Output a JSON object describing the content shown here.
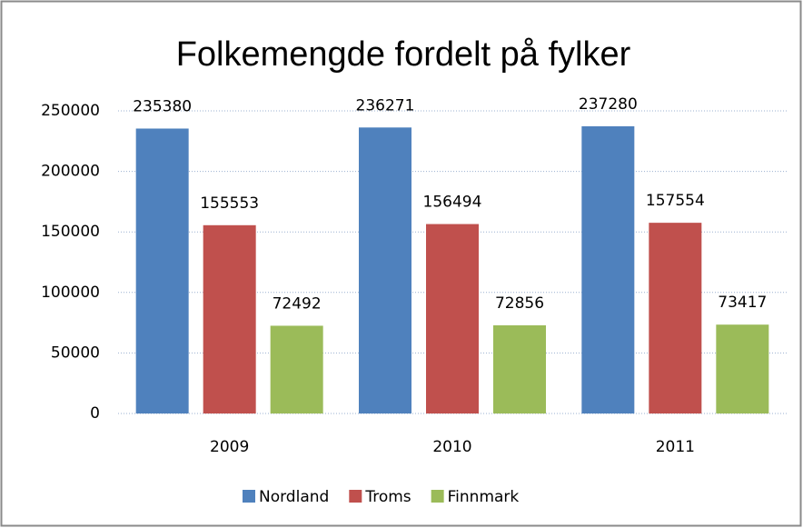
{
  "chart_data": {
    "type": "bar",
    "title": "Folkemengde fordelt på fylker",
    "categories": [
      "2009",
      "2010",
      "2011"
    ],
    "series": [
      {
        "name": "Nordland",
        "color": "#4f81bd",
        "values": [
          235380,
          236271,
          237280
        ]
      },
      {
        "name": "Troms",
        "color": "#c0504d",
        "values": [
          155553,
          156494,
          157554
        ]
      },
      {
        "name": "Finnmark",
        "color": "#9bbb59",
        "values": [
          72492,
          72856,
          73417
        ]
      }
    ],
    "ylim": [
      0,
      250000
    ],
    "yticks": [
      0,
      50000,
      100000,
      150000,
      200000,
      250000
    ],
    "grid": true,
    "legend": "bottom"
  }
}
